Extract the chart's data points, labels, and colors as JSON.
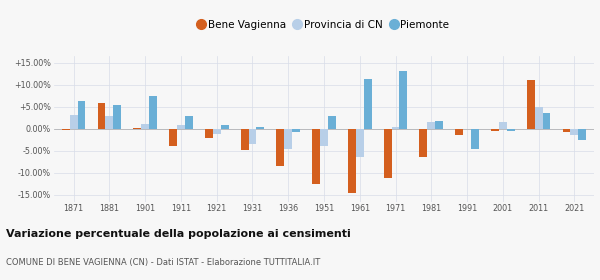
{
  "years": [
    1871,
    1881,
    1901,
    1911,
    1921,
    1931,
    1936,
    1951,
    1961,
    1971,
    1981,
    1991,
    2001,
    2011,
    2021
  ],
  "bene_vagienna": [
    -0.3,
    5.8,
    0.1,
    -4.0,
    -2.0,
    -4.8,
    -8.5,
    -12.5,
    -14.5,
    -11.2,
    -6.5,
    -1.5,
    -0.5,
    11.0,
    -0.8
  ],
  "provincia_cn": [
    3.2,
    2.8,
    1.0,
    0.8,
    -1.2,
    -3.5,
    -4.5,
    -4.0,
    -6.5,
    0.5,
    1.5,
    0.0,
    1.5,
    5.0,
    -1.5
  ],
  "piemonte": [
    6.2,
    5.5,
    7.5,
    2.8,
    0.8,
    0.5,
    -0.8,
    3.0,
    11.2,
    13.2,
    1.8,
    -4.5,
    -0.5,
    3.5,
    -2.5
  ],
  "color_bene": "#d45f1e",
  "color_provincia": "#b8cfe8",
  "color_piemonte": "#6aafd6",
  "title": "Variazione percentuale della popolazione ai censimenti",
  "subtitle": "COMUNE DI BENE VAGIENNA (CN) - Dati ISTAT - Elaborazione TUTTITALIA.IT",
  "ylim": [
    -16.5,
    16.5
  ],
  "yticks": [
    -15,
    -10,
    -5,
    0,
    5,
    10,
    15
  ],
  "ytick_labels": [
    "-15.00%",
    "-10.00%",
    "-5.00%",
    "0.00%",
    "+5.00%",
    "+10.00%",
    "+15.00%"
  ],
  "background_color": "#f7f7f7",
  "grid_color": "#d8dde8"
}
